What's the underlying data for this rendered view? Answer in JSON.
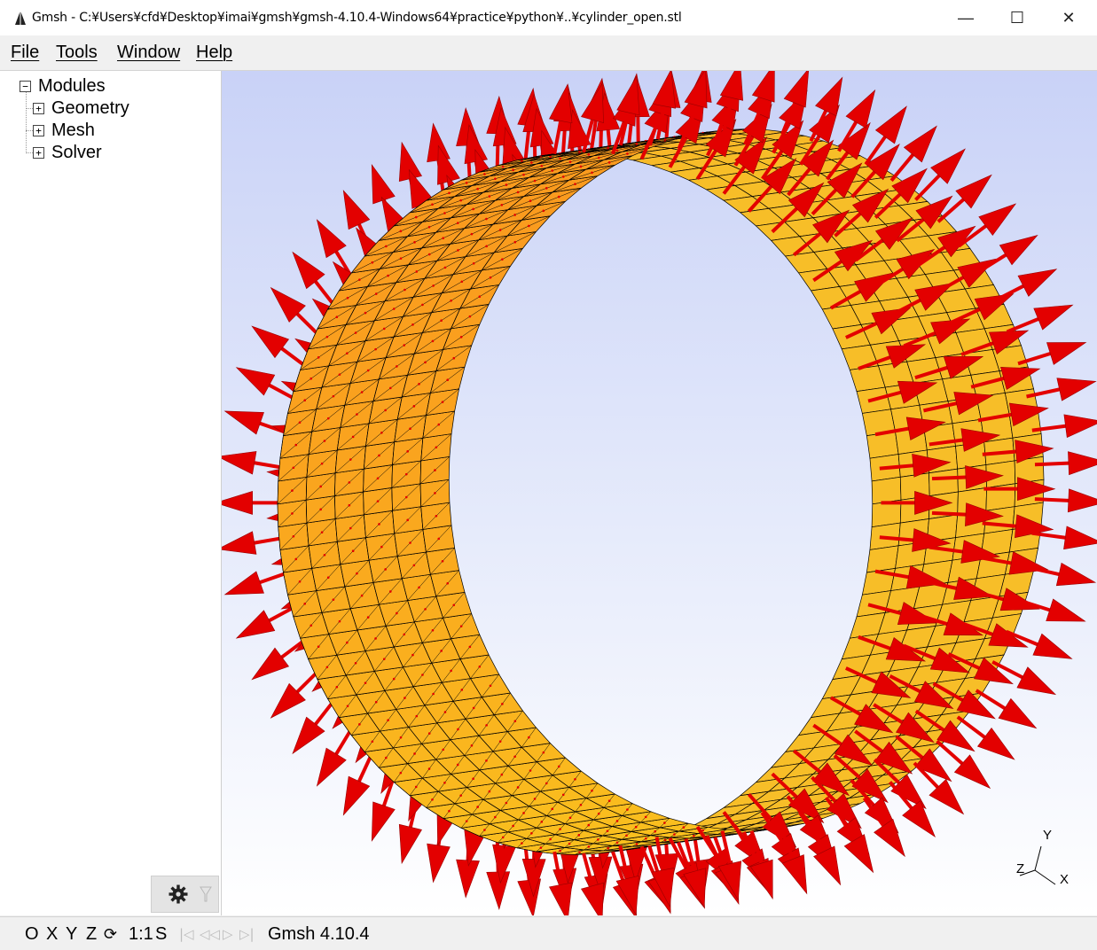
{
  "window": {
    "title": "Gmsh - C:¥Users¥cfd¥Desktop¥imai¥gmsh¥gmsh-4.10.4-Windows64¥practice¥python¥..¥cylinder_open.stl",
    "minimize": "—",
    "maximize": "☐",
    "close": "✕"
  },
  "menu": {
    "file": "File",
    "tools": "Tools",
    "window": "Window",
    "help": "Help"
  },
  "tree": {
    "root": {
      "toggle": "−",
      "label": "Modules"
    },
    "items": [
      {
        "toggle": "+",
        "label": "Geometry"
      },
      {
        "toggle": "+",
        "label": "Mesh"
      },
      {
        "toggle": "+",
        "label": "Solver"
      }
    ]
  },
  "axes": {
    "x": "X",
    "y": "Y",
    "z": "Z"
  },
  "status": {
    "o": "O",
    "x": "X",
    "y": "Y",
    "z": "Z",
    "rotate": "⟳",
    "scale": "1:1",
    "s": "S",
    "first": "|◁",
    "prev": "◁◁",
    "play": "▷",
    "next": "▷|",
    "version": "Gmsh 4.10.4"
  },
  "colors": {
    "surface": "#f7b21a",
    "arrow": "#e30000",
    "edge": "#000000",
    "bg_top": "#c9d2f7",
    "bg_bottom": "#ffffff"
  },
  "icons": {
    "gear": "gear-icon",
    "filter": "filter-icon",
    "app": "gmsh-logo-icon"
  }
}
